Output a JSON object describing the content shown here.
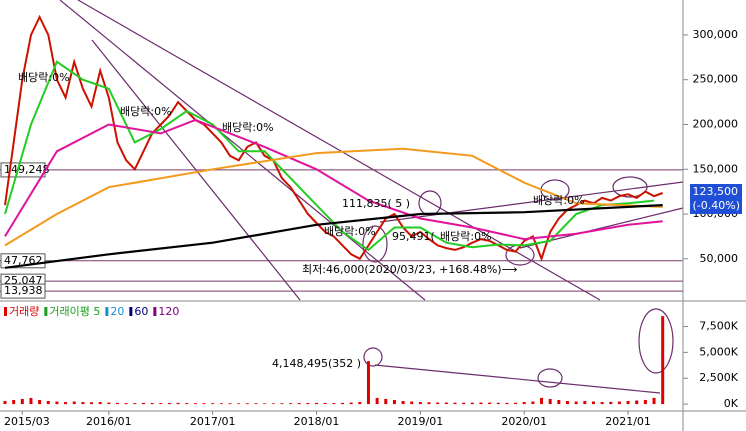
{
  "chart_data": [
    {
      "type": "line",
      "x": [
        "2015/01",
        "2015/02",
        "2015/03",
        "2015/04",
        "2015/05",
        "2015/06",
        "2015/07",
        "2015/08",
        "2015/09",
        "2015/10",
        "2015/11",
        "2015/12",
        "2016/01",
        "2016/02",
        "2016/03",
        "2016/04",
        "2016/05",
        "2016/06",
        "2016/07",
        "2016/08",
        "2016/09",
        "2016/10",
        "2016/11",
        "2016/12",
        "2017/01",
        "2017/02",
        "2017/03",
        "2017/04",
        "2017/05",
        "2017/06",
        "2017/07",
        "2017/08",
        "2017/09",
        "2017/10",
        "2017/11",
        "2017/12",
        "2018/01",
        "2018/02",
        "2018/03",
        "2018/04",
        "2018/05",
        "2018/06",
        "2018/07",
        "2018/08",
        "2018/09",
        "2018/10",
        "2018/11",
        "2018/12",
        "2019/01",
        "2019/02",
        "2019/03",
        "2019/04",
        "2019/05",
        "2019/06",
        "2019/07",
        "2019/08",
        "2019/09",
        "2019/10",
        "2019/11",
        "2019/12",
        "2020/01",
        "2020/02",
        "2020/03",
        "2020/04",
        "2020/05",
        "2020/06",
        "2020/07",
        "2020/08",
        "2020/09",
        "2020/10",
        "2020/11",
        "2020/12",
        "2021/01",
        "2021/02",
        "2021/03",
        "2021/04",
        "2021/05"
      ],
      "xlim": [
        "2015/01",
        "2021/07"
      ],
      "series": [
        {
          "color": "#cc1100",
          "values": [
            110000,
            180000,
            250000,
            300000,
            320000,
            300000,
            250000,
            230000,
            270000,
            240000,
            220000,
            260000,
            230000,
            180000,
            160000,
            150000,
            170000,
            190000,
            200000,
            210000,
            225000,
            215000,
            205000,
            200000,
            190000,
            180000,
            165000,
            160000,
            175000,
            180000,
            165000,
            160000,
            140000,
            130000,
            115000,
            100000,
            90000,
            80000,
            75000,
            65000,
            55000,
            50000,
            65000,
            80000,
            95000,
            100000,
            85000,
            75000,
            80000,
            72000,
            65000,
            62000,
            60000,
            63000,
            68000,
            72000,
            70000,
            65000,
            60000,
            58000,
            70000,
            75000,
            50000,
            80000,
            95000,
            105000,
            110000,
            115000,
            112000,
            118000,
            115000,
            120000,
            122000,
            118000,
            125000,
            120000,
            123500
          ]
        },
        {
          "color": "#22cc22",
          "x": [
            "2015/01",
            "2015/04",
            "2015/07",
            "2015/10",
            "2016/01",
            "2016/04",
            "2016/07",
            "2016/10",
            "2017/01",
            "2017/04",
            "2017/07",
            "2017/10",
            "2018/01",
            "2018/04",
            "2018/07",
            "2018/10",
            "2019/01",
            "2019/04",
            "2019/07",
            "2019/10",
            "2020/01",
            "2020/04",
            "2020/07",
            "2020/10",
            "2021/01",
            "2021/04"
          ],
          "values": [
            100000,
            200000,
            270000,
            250000,
            240000,
            180000,
            195000,
            215000,
            200000,
            170000,
            170000,
            140000,
            110000,
            80000,
            60000,
            85000,
            85000,
            68000,
            63000,
            66000,
            65000,
            70000,
            100000,
            110000,
            112000,
            115000
          ]
        },
        {
          "color": "#e0139a",
          "x": [
            "2015/01",
            "2015/07",
            "2016/01",
            "2016/07",
            "2016/11",
            "2017/07",
            "2018/01",
            "2018/07",
            "2019/01",
            "2019/07",
            "2020/01",
            "2020/07",
            "2021/01",
            "2021/05"
          ],
          "values": [
            75000,
            170000,
            200000,
            190000,
            205000,
            175000,
            150000,
            115000,
            95000,
            85000,
            72000,
            78000,
            88000,
            92000
          ]
        },
        {
          "color": "#f39a1e",
          "x": [
            "2015/01",
            "2015/07",
            "2016/01",
            "2017/01",
            "2018/01",
            "2018/11",
            "2019/07",
            "2020/01",
            "2020/07",
            "2021/05"
          ],
          "values": [
            65000,
            100000,
            130000,
            150000,
            168000,
            173000,
            165000,
            135000,
            112000,
            108000
          ]
        },
        {
          "color": "#000000",
          "x": [
            "2015/01",
            "2016/01",
            "2017/01",
            "2018/01",
            "2019/01",
            "2020/01",
            "2021/05"
          ],
          "values": [
            40000,
            55000,
            68000,
            88000,
            100000,
            102000,
            110000
          ]
        }
      ],
      "ylim": [
        4000,
        339000
      ],
      "yticks": [
        {
          "value": 50000,
          "label": "50,000"
        },
        {
          "value": 100000,
          "label": "100,000"
        },
        {
          "value": 150000,
          "label": "150,000"
        },
        {
          "value": 200000,
          "label": "200,000"
        },
        {
          "value": 250000,
          "label": "250,000"
        },
        {
          "value": 300000,
          "label": "300,000"
        }
      ],
      "levels": [
        {
          "value": 149248,
          "label": "149,248"
        },
        {
          "value": 47762,
          "label": "47,762"
        },
        {
          "value": 25047,
          "label": "25,047"
        },
        {
          "value": 13938,
          "label": "13,938"
        }
      ],
      "last_price": {
        "value": 123500,
        "label": "123,500"
      },
      "last_change": "(-0.40%)",
      "annotations": [
        "배당락:0%",
        "배당락:0%",
        "배당락:0%",
        "111,835(  5  )",
        "배당락:0%",
        "95,491(",
        "배당락:0%",
        "배당락:0%",
        "최저:46,000(2020/03/23, +168.48%)⟶"
      ]
    },
    {
      "type": "bar",
      "x": [
        "2015/01",
        "2015/02",
        "2015/03",
        "2015/04",
        "2015/05",
        "2015/06",
        "2015/07",
        "2015/08",
        "2015/09",
        "2015/10",
        "2015/11",
        "2015/12",
        "2016/01",
        "2016/02",
        "2016/03",
        "2016/04",
        "2016/05",
        "2016/06",
        "2016/07",
        "2016/08",
        "2016/09",
        "2016/10",
        "2016/11",
        "2016/12",
        "2017/01",
        "2017/02",
        "2017/03",
        "2017/04",
        "2017/05",
        "2017/06",
        "2017/07",
        "2017/08",
        "2017/09",
        "2017/10",
        "2017/11",
        "2017/12",
        "2018/01",
        "2018/02",
        "2018/03",
        "2018/04",
        "2018/05",
        "2018/06",
        "2018/07",
        "2018/08",
        "2018/09",
        "2018/10",
        "2018/11",
        "2018/12",
        "2019/01",
        "2019/02",
        "2019/03",
        "2019/04",
        "2019/05",
        "2019/06",
        "2019/07",
        "2019/08",
        "2019/09",
        "2019/10",
        "2019/11",
        "2019/12",
        "2020/01",
        "2020/02",
        "2020/03",
        "2020/04",
        "2020/05",
        "2020/06",
        "2020/07",
        "2020/08",
        "2020/09",
        "2020/10",
        "2020/11",
        "2020/12",
        "2021/01",
        "2021/02",
        "2021/03",
        "2021/04",
        "2021/05"
      ],
      "xlim": [
        "2015/01",
        "2021/07"
      ],
      "series": [
        {
          "name": "거래량",
          "color": "#e00000",
          "values": [
            300,
            400,
            500,
            600,
            400,
            300,
            250,
            200,
            250,
            200,
            180,
            200,
            150,
            120,
            100,
            100,
            120,
            110,
            100,
            110,
            120,
            100,
            90,
            90,
            90,
            80,
            80,
            70,
            80,
            80,
            70,
            70,
            80,
            90,
            100,
            110,
            120,
            110,
            100,
            120,
            150,
            200,
            4148,
            600,
            500,
            400,
            300,
            250,
            200,
            180,
            150,
            150,
            140,
            130,
            140,
            150,
            140,
            130,
            120,
            120,
            200,
            250,
            600,
            500,
            400,
            300,
            250,
            300,
            250,
            200,
            220,
            250,
            300,
            350,
            400,
            600,
            8500
          ]
        }
      ],
      "legend": [
        {
          "name": "거래이평 5",
          "color": "#1a9e1a"
        },
        {
          "name": "20",
          "color": "#1a8fd0"
        },
        {
          "name": "60",
          "color": "#000080"
        },
        {
          "name": "120",
          "color": "#800080"
        }
      ],
      "ylim": [
        -570,
        9580
      ],
      "yticks": [
        {
          "value": 0,
          "label": "0K"
        },
        {
          "value": 2500,
          "label": "2,500K"
        },
        {
          "value": 5000,
          "label": "5,000K"
        },
        {
          "value": 7500,
          "label": "7,500K"
        }
      ],
      "xticks": [
        "2015/03",
        "2016/01",
        "2017/01",
        "2018/01",
        "2019/01",
        "2020/01",
        "2021/01"
      ],
      "annotations": [
        "4,148,495(352  )"
      ]
    }
  ]
}
